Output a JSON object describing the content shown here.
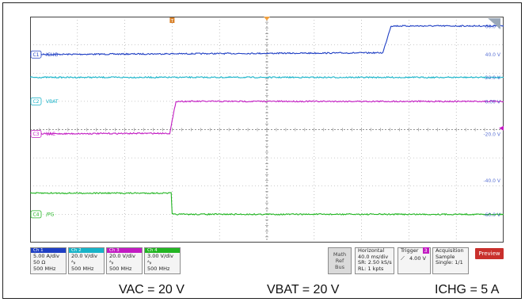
{
  "chart_data": {
    "type": "line",
    "title": "",
    "xlabel": "",
    "ylabel": "",
    "grid": true,
    "x_divisions": 10,
    "y_divisions": 8,
    "xlim": [
      0,
      10
    ],
    "ylim": [
      0,
      8
    ],
    "channel_labels": [
      {
        "badge": "C1",
        "name": "ICHG",
        "color": "#1f3fc4"
      },
      {
        "badge": "C2",
        "name": "VBAT",
        "color": "#17b3c8"
      },
      {
        "badge": "C3",
        "name": "VAC",
        "color": "#c21bc2"
      },
      {
        "badge": "C4",
        "name": "/PG",
        "color": "#22b522"
      }
    ],
    "series": [
      {
        "name": "ICHG",
        "color": "#1f3fc4",
        "x": [
          0,
          7.45,
          7.62,
          10
        ],
        "y": [
          6.66,
          6.72,
          7.67,
          7.67
        ]
      },
      {
        "name": "VBAT",
        "color": "#17b3c8",
        "x": [
          0,
          10
        ],
        "y": [
          5.85,
          5.85
        ]
      },
      {
        "name": "VAC",
        "color": "#c21bc2",
        "x": [
          0,
          2.95,
          3.08,
          10
        ],
        "y": [
          3.85,
          3.87,
          5.0,
          5.0
        ]
      },
      {
        "name": "/PG",
        "color": "#22b522",
        "x": [
          0,
          2.98,
          3.0,
          10
        ],
        "y": [
          1.75,
          1.75,
          1.0,
          1.0
        ]
      }
    ],
    "right_scale_labels": [
      {
        "text": "60.0 V",
        "y": 7.67
      },
      {
        "text": "40.0 V",
        "y": 6.66
      },
      {
        "text": "20.0 V",
        "y": 5.85
      },
      {
        "text": "0.00 V",
        "y": 5.0
      },
      {
        "text": "-20.0 V",
        "y": 3.85
      },
      {
        "text": "-40.0 V",
        "y": 2.2
      },
      {
        "text": "-60.0 V",
        "y": 1.0
      }
    ],
    "trigger_level_y": 4.05
  },
  "channels": [
    {
      "label": "Ch 1",
      "color": "#1f3fc4",
      "lines": [
        "5.00 A/div",
        "50 Ω",
        "500 MHz"
      ]
    },
    {
      "label": "Ch 2",
      "color": "#17b3c8",
      "lines": [
        "20.0 V/div",
        "ᴬᵦ",
        "500 MHz"
      ]
    },
    {
      "label": "Ch 3",
      "color": "#c21bc2",
      "lines": [
        "20.0 V/div",
        "ᴬᵦ",
        "500 MHz"
      ]
    },
    {
      "label": "Ch 4",
      "color": "#22b522",
      "lines": [
        "3.00 V/div",
        "ᴬᵦ",
        "500 MHz"
      ]
    }
  ],
  "math_ref_bus": [
    "Math",
    "Ref",
    "Bus"
  ],
  "horizontal": {
    "title": "Horizontal",
    "lines": [
      "40.0 ms/div",
      "SR: 2.50 kS/s",
      "RL: 1 kpts"
    ]
  },
  "trigger": {
    "title": "Trigger",
    "badge": "3",
    "level": "4.00 V"
  },
  "acquisition": {
    "title": "Acquisition",
    "lines": [
      "Sample",
      "Single: 1/1"
    ]
  },
  "preview_label": "Preview",
  "trigger_marker": "T",
  "captions": [
    "VAC = 20 V",
    "VBAT = 20 V",
    "ICHG = 5 A"
  ],
  "colors": {
    "grid": "#9a9a9a",
    "background": "#ffffff",
    "preview": "#c9302c"
  }
}
